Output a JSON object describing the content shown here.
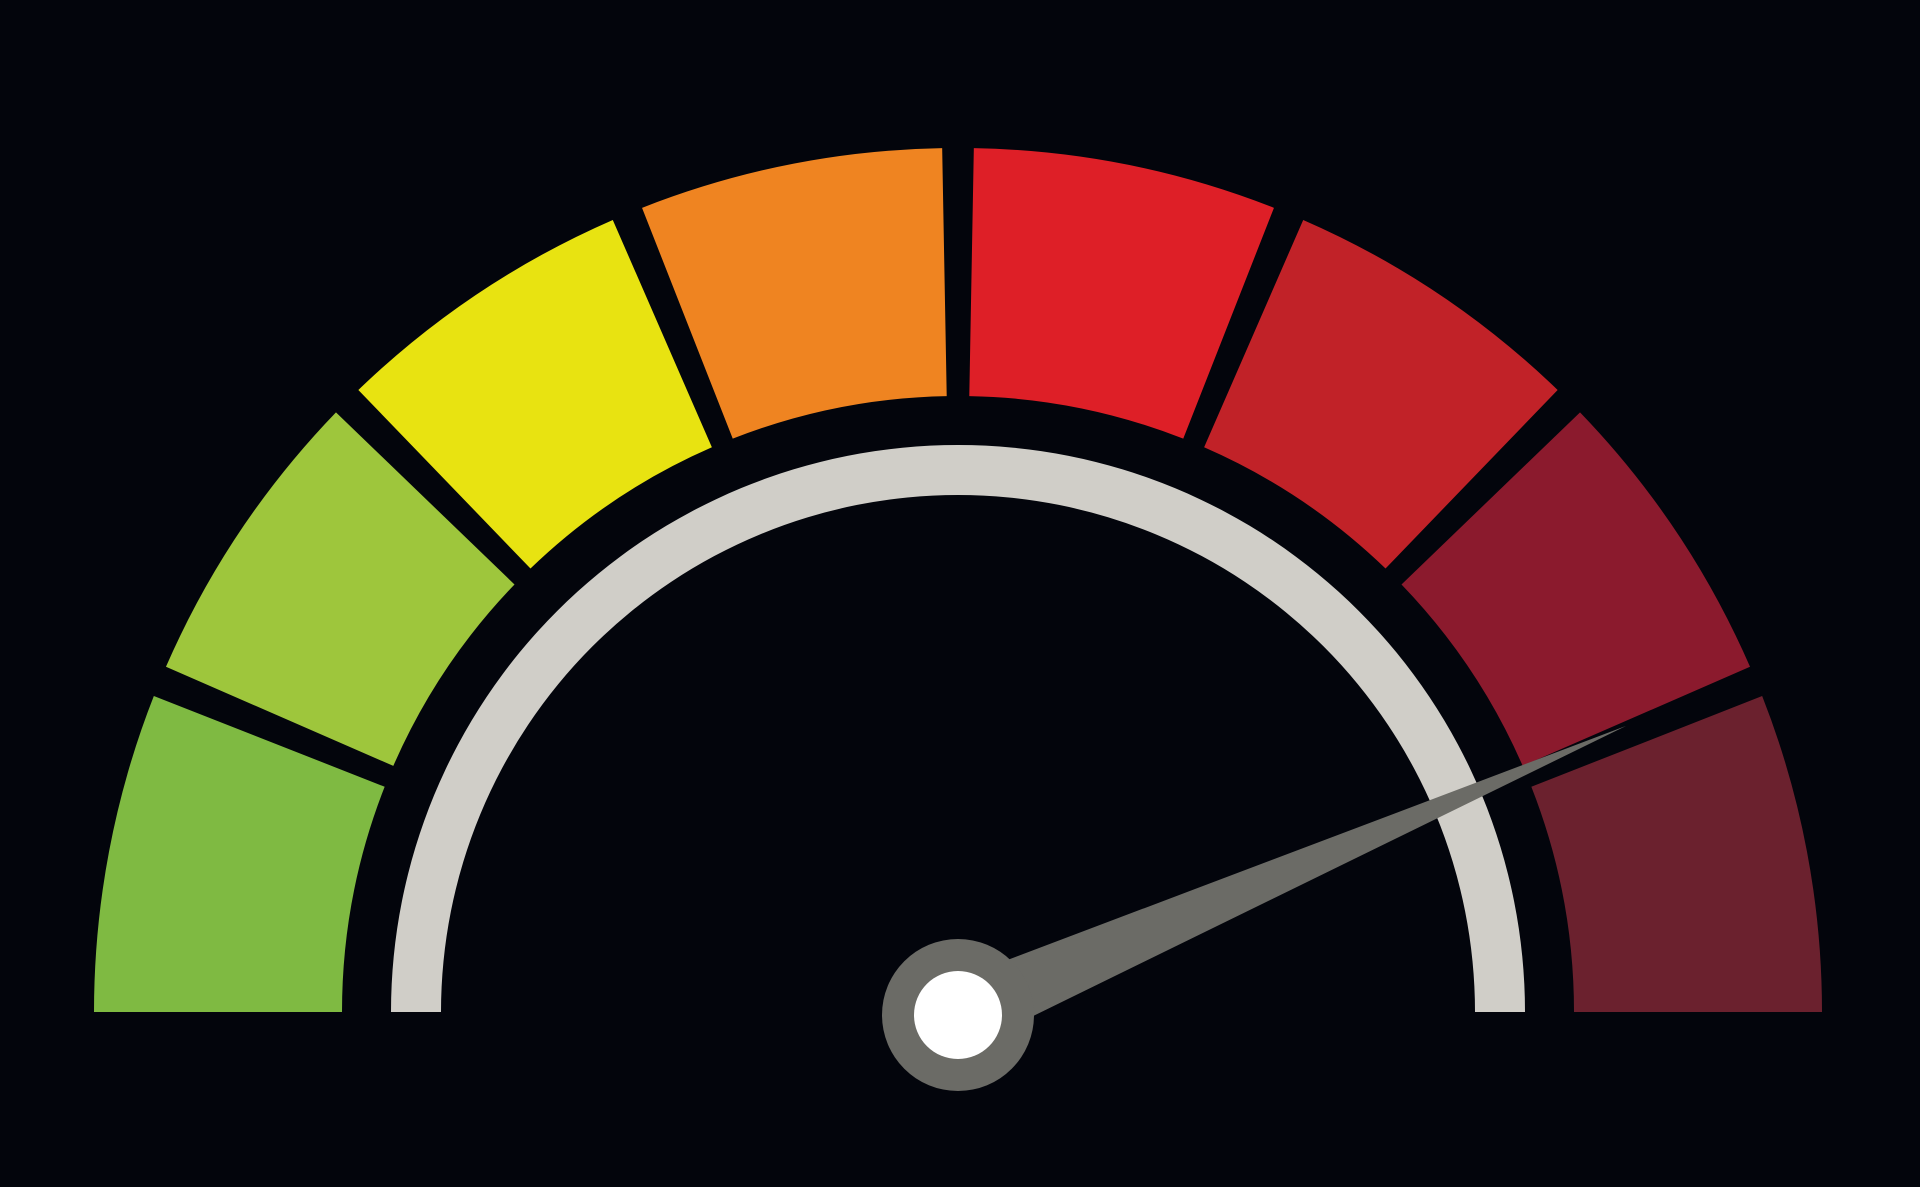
{
  "background_color": "#03050c",
  "gauge": {
    "segment_count": 8,
    "segment_colors": [
      "#7fba42",
      "#9ec63c",
      "#e8e311",
      "#ef8421",
      "#de1f27",
      "#c12228",
      "#8b1a2d",
      "#6b212e"
    ],
    "inner_arc_color": "#d0cec8",
    "needle_color": "#6b6b66",
    "hub_ring_color": "#6b6b66",
    "hub_center_color": "#ffffff",
    "needle_level_fraction": 0.87
  }
}
